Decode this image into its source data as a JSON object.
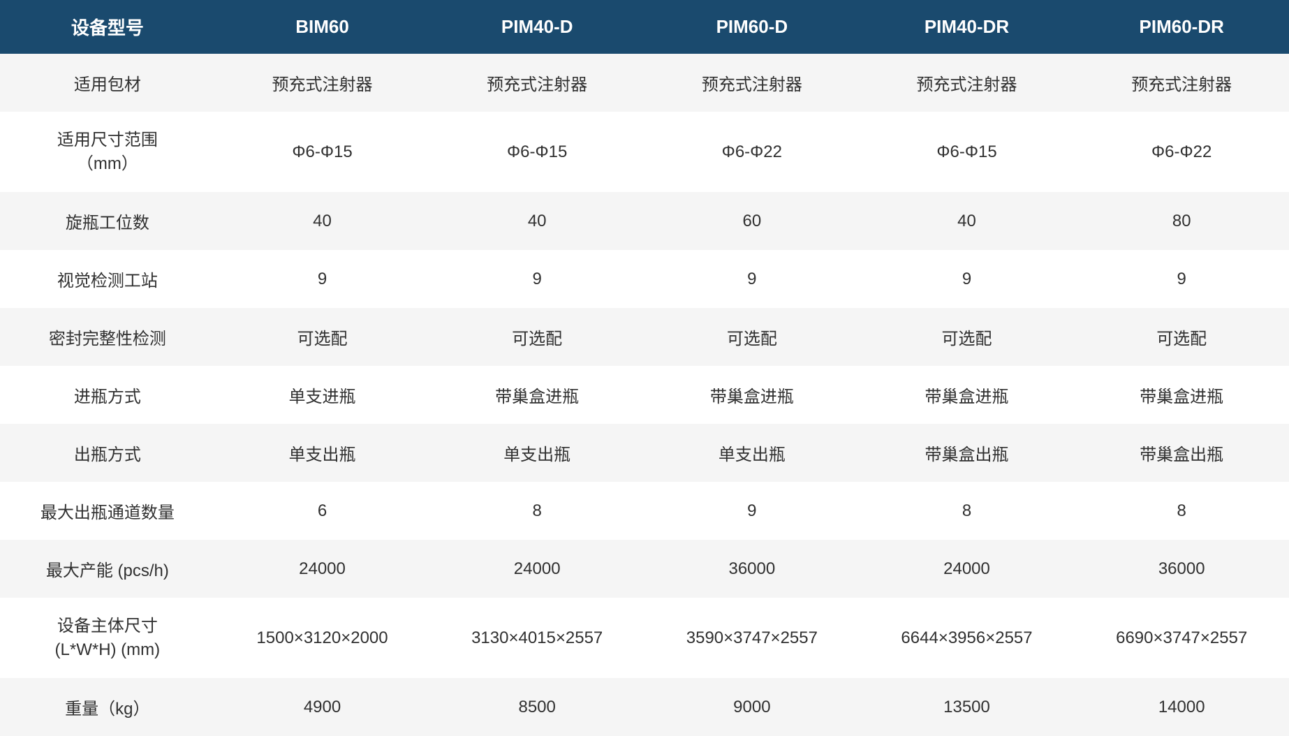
{
  "table": {
    "header_bg_color": "#1a4a6e",
    "header_text_color": "#ffffff",
    "row_bg_color": "#f5f5f5",
    "row_alt_bg_color": "#ffffff",
    "text_color": "#303030",
    "header_fontsize": 26,
    "cell_fontsize": 24,
    "columns": [
      "设备型号",
      "BIM60",
      "PIM40-D",
      "PIM60-D",
      "PIM40-DR",
      "PIM60-DR"
    ],
    "rows": [
      {
        "label": "适用包材",
        "values": [
          "预充式注射器",
          "预充式注射器",
          "预充式注射器",
          "预充式注射器",
          "预充式注射器"
        ]
      },
      {
        "label": "适用尺寸范围\n（mm）",
        "values": [
          "Φ6-Φ15",
          "Φ6-Φ15",
          "Φ6-Φ22",
          "Φ6-Φ15",
          "Φ6-Φ22"
        ]
      },
      {
        "label": "旋瓶工位数",
        "values": [
          "40",
          "40",
          "60",
          "40",
          "80"
        ]
      },
      {
        "label": "视觉检测工站",
        "values": [
          "9",
          "9",
          "9",
          "9",
          "9"
        ]
      },
      {
        "label": "密封完整性检测",
        "values": [
          "可选配",
          "可选配",
          "可选配",
          "可选配",
          "可选配"
        ]
      },
      {
        "label": "进瓶方式",
        "values": [
          "单支进瓶",
          "带巢盒进瓶",
          "带巢盒进瓶",
          "带巢盒进瓶",
          "带巢盒进瓶"
        ]
      },
      {
        "label": "出瓶方式",
        "values": [
          "单支出瓶",
          "单支出瓶",
          "单支出瓶",
          "带巢盒出瓶",
          "带巢盒出瓶"
        ]
      },
      {
        "label": "最大出瓶通道数量",
        "values": [
          "6",
          "8",
          "9",
          "8",
          "8"
        ]
      },
      {
        "label": "最大产能 (pcs/h)",
        "values": [
          "24000",
          "24000",
          "36000",
          "24000",
          "36000"
        ]
      },
      {
        "label": "设备主体尺寸\n(L*W*H) (mm)",
        "values": [
          "1500×3120×2000",
          "3130×4015×2557",
          "3590×3747×2557",
          "6644×3956×2557",
          "6690×3747×2557"
        ]
      },
      {
        "label": "重量（kg）",
        "values": [
          "4900",
          "8500",
          "9000",
          "13500",
          "14000"
        ]
      }
    ]
  }
}
